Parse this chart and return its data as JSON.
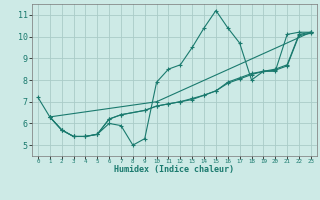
{
  "xlabel": "Humidex (Indice chaleur)",
  "background_color": "#cdeae6",
  "grid_color": "#aaccc8",
  "line_color": "#1a7a6e",
  "xlim": [
    -0.5,
    23.5
  ],
  "ylim": [
    4.5,
    11.5
  ],
  "yticks": [
    5,
    6,
    7,
    8,
    9,
    10,
    11
  ],
  "xticks": [
    0,
    1,
    2,
    3,
    4,
    5,
    6,
    7,
    8,
    9,
    10,
    11,
    12,
    13,
    14,
    15,
    16,
    17,
    18,
    19,
    20,
    21,
    22,
    23
  ],
  "series": [
    {
      "x": [
        0,
        1,
        2,
        3,
        4,
        5,
        6,
        7,
        8,
        9,
        10,
        11,
        12,
        13,
        14,
        15,
        16,
        17,
        18,
        19,
        20,
        21,
        22,
        23
      ],
      "y": [
        7.2,
        6.3,
        5.7,
        5.4,
        5.4,
        5.5,
        6.0,
        5.9,
        5.0,
        5.3,
        7.9,
        8.5,
        8.7,
        9.5,
        10.4,
        11.2,
        10.4,
        9.7,
        8.0,
        8.4,
        8.4,
        10.1,
        10.2,
        10.2
      ]
    },
    {
      "x": [
        1,
        2,
        3,
        4,
        5,
        6,
        7,
        9,
        10,
        11,
        12,
        13,
        14,
        15,
        16,
        17,
        18,
        19,
        20,
        21,
        22,
        23
      ],
      "y": [
        6.3,
        5.7,
        5.4,
        5.4,
        5.5,
        6.2,
        6.4,
        6.6,
        6.8,
        6.9,
        7.0,
        7.1,
        7.3,
        7.5,
        7.9,
        8.1,
        8.3,
        8.4,
        8.5,
        8.7,
        10.1,
        10.2
      ]
    },
    {
      "x": [
        1,
        2,
        3,
        4,
        5,
        6,
        7,
        9,
        10,
        11,
        12,
        13,
        14,
        15,
        16,
        17,
        18,
        19,
        20,
        21,
        22,
        23
      ],
      "y": [
        6.3,
        5.7,
        5.4,
        5.4,
        5.5,
        6.2,
        6.4,
        6.6,
        6.8,
        6.9,
        7.0,
        7.15,
        7.3,
        7.5,
        7.85,
        8.05,
        8.25,
        8.4,
        8.45,
        8.65,
        10.05,
        10.15
      ]
    },
    {
      "x": [
        1,
        10,
        23
      ],
      "y": [
        6.3,
        7.0,
        10.2
      ]
    }
  ]
}
